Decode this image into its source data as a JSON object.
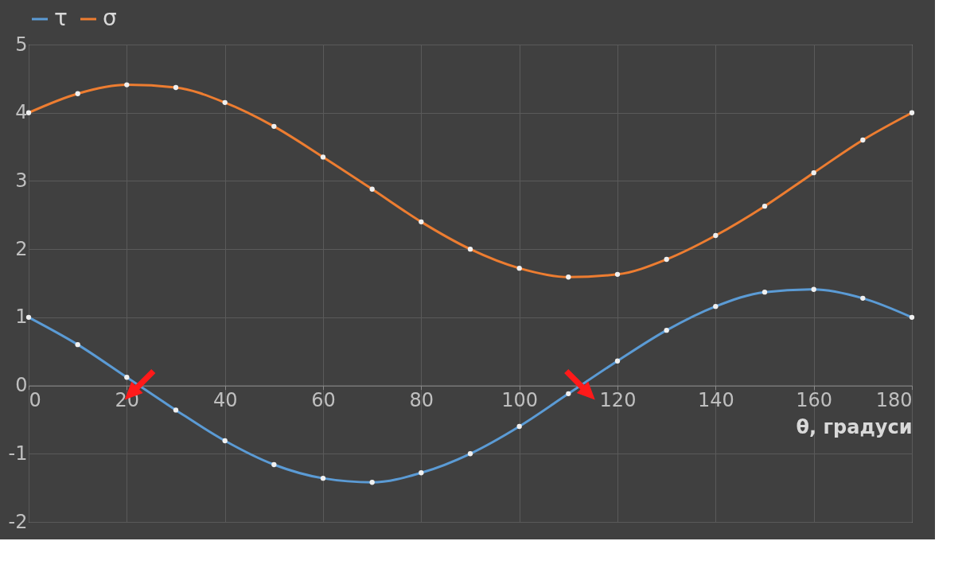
{
  "chart_data": {
    "type": "line",
    "x": [
      0,
      10,
      20,
      30,
      40,
      50,
      60,
      70,
      80,
      90,
      100,
      110,
      120,
      130,
      140,
      150,
      160,
      170,
      180
    ],
    "series": [
      {
        "name": "τ",
        "color": "#5b9bd5",
        "values": [
          1.0,
          0.6,
          0.12,
          -0.36,
          -0.81,
          -1.16,
          -1.36,
          -1.42,
          -1.28,
          -1.0,
          -0.6,
          -0.12,
          0.36,
          0.81,
          1.16,
          1.37,
          1.41,
          1.28,
          1.0
        ]
      },
      {
        "name": "σ",
        "color": "#ed7d31",
        "values": [
          4.0,
          4.28,
          4.41,
          4.37,
          4.15,
          3.8,
          3.35,
          2.88,
          2.4,
          2.0,
          1.72,
          1.59,
          1.63,
          1.85,
          2.2,
          2.63,
          3.12,
          3.6,
          4.0
        ]
      }
    ],
    "xlabel": "θ, градуси",
    "xlim": [
      0,
      180
    ],
    "xticks": [
      0,
      20,
      40,
      60,
      80,
      100,
      120,
      140,
      160,
      180
    ],
    "ylim": [
      -2,
      5
    ],
    "yticks": [
      -2,
      -1,
      0,
      1,
      2,
      3,
      4,
      5
    ],
    "grid": true,
    "legend": "top",
    "marker": "circle"
  }
}
